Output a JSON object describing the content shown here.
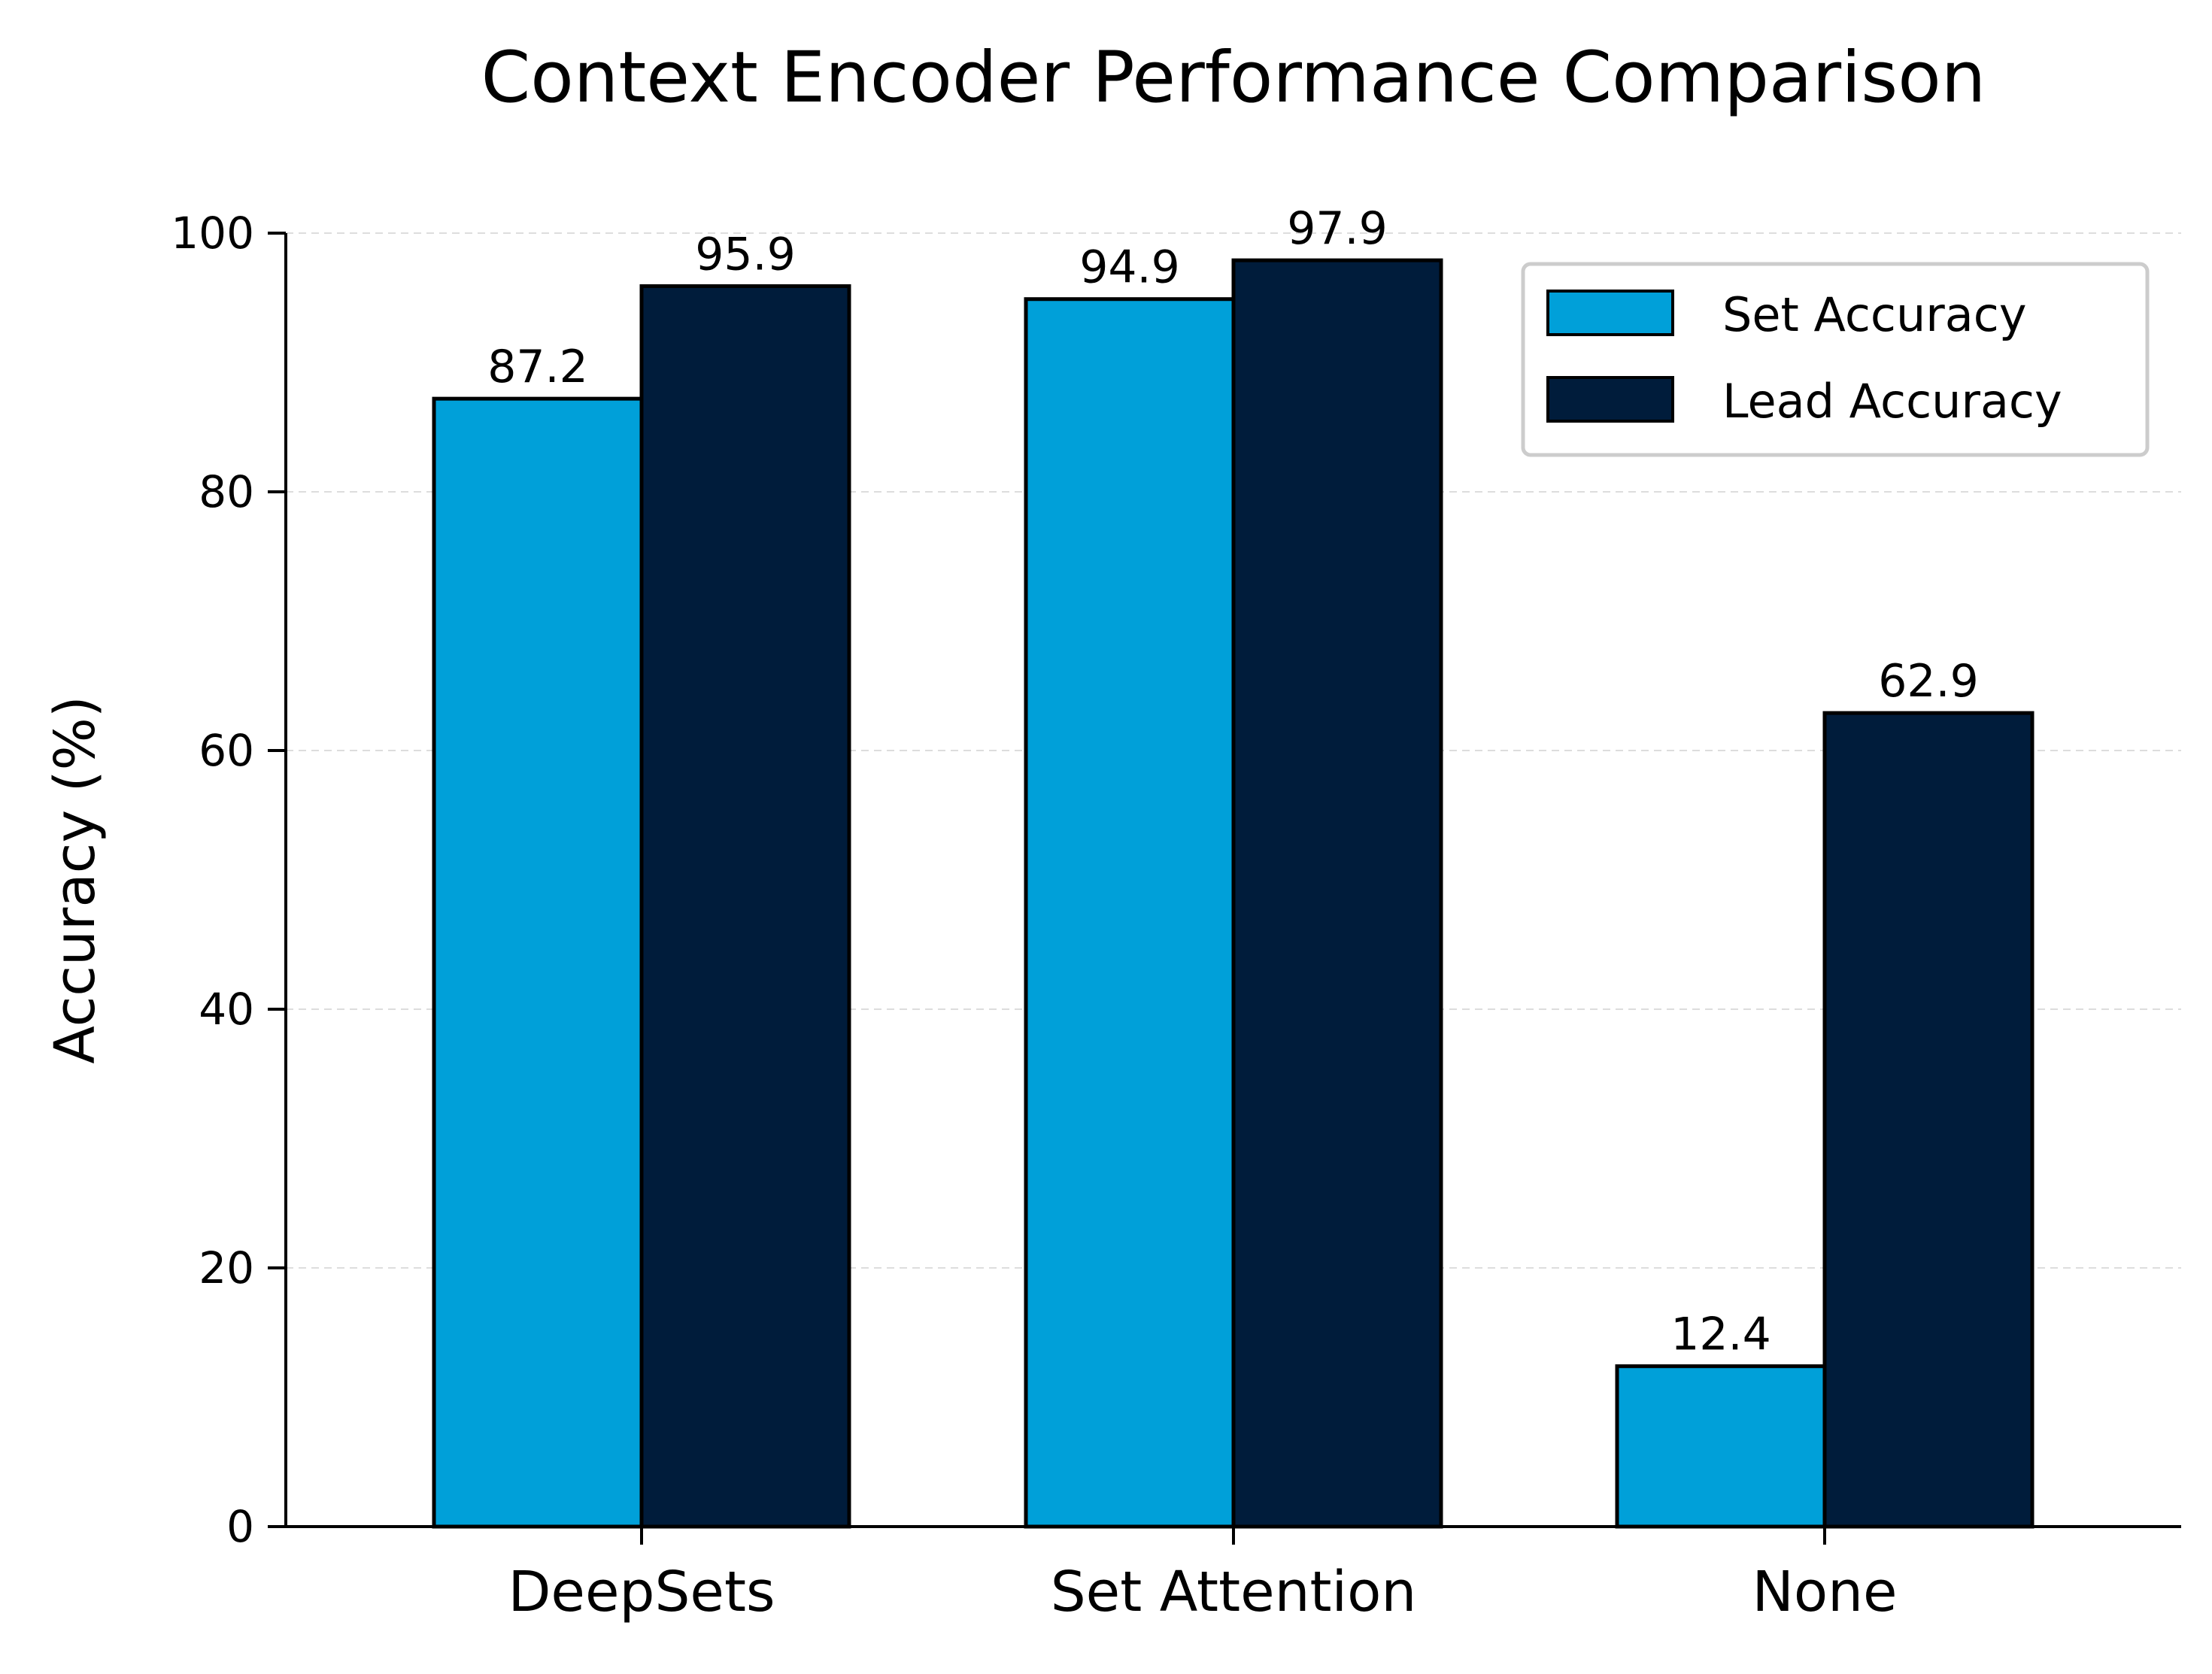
{
  "chart_data": {
    "type": "bar",
    "title": "Context Encoder Performance Comparison",
    "xlabel": "",
    "ylabel": "Accuracy (%)",
    "categories": [
      "DeepSets",
      "Set Attention",
      "None"
    ],
    "series": [
      {
        "name": "Set Accuracy",
        "values": [
          87.2,
          94.9,
          12.4
        ],
        "labels": [
          "87.2",
          "94.9",
          "12.4"
        ],
        "color": "#00a0d9"
      },
      {
        "name": "Lead Accuracy",
        "values": [
          95.9,
          97.9,
          62.9
        ],
        "labels": [
          "95.9",
          "97.9",
          "62.9"
        ],
        "color": "#001c3b"
      }
    ],
    "ylim": [
      0,
      100
    ],
    "yticks": [
      0,
      20,
      40,
      60,
      80,
      100
    ],
    "ytick_labels": [
      "0",
      "20",
      "40",
      "60",
      "80",
      "100"
    ],
    "grid": "y, dashed, light",
    "legend_position": "top-right",
    "bar_edge_color": "#000000"
  }
}
